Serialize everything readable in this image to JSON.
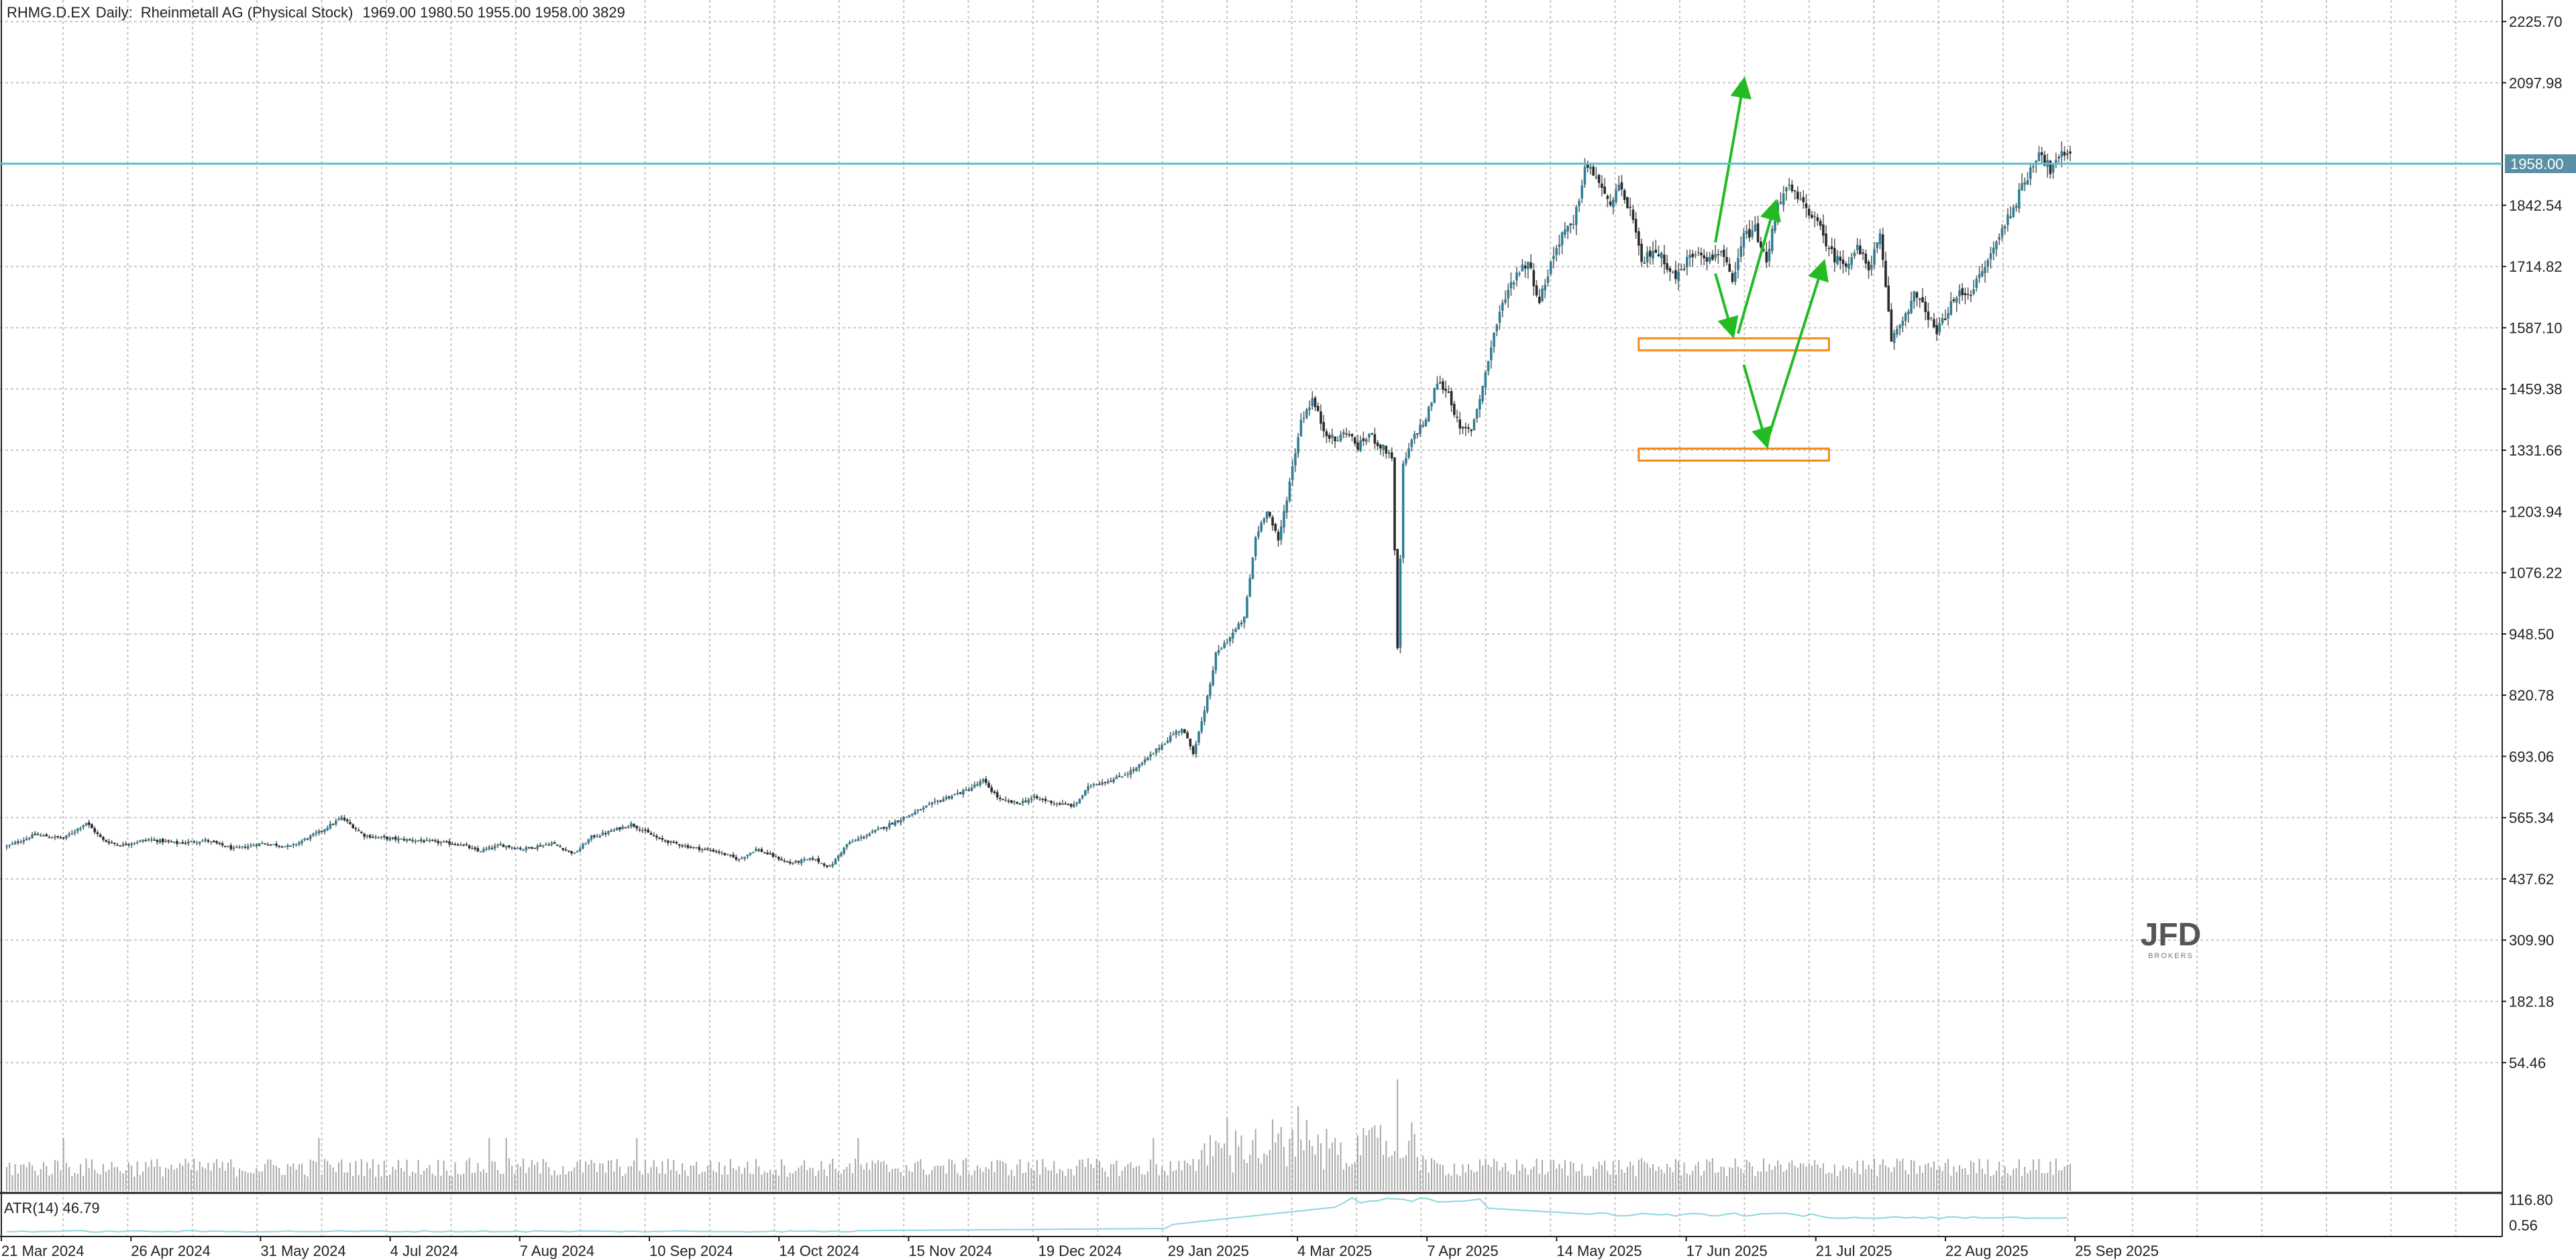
{
  "header": {
    "symbol": "RHMG.D.EX",
    "timeframe": "Daily:",
    "name": "Rheinmetall AG (Physical Stock)",
    "ohlcv": "1969.00 1980.50 1955.00 1958.00 3829"
  },
  "current_price_label": "1958.00",
  "atr_label": "ATR(14) 46.79",
  "watermark": {
    "main": "JFD",
    "sub": "BROKERS"
  },
  "colors": {
    "bull": "#2f7f97",
    "bear": "#2a2a2a",
    "grid": "#c8c8c8",
    "price_line": "#5bbccc",
    "arrows": "#22bb22",
    "zones": "#f08a17",
    "volume": "#a8a8a8",
    "atr": "#8fd6df"
  },
  "chart_data": {
    "type": "candlestick",
    "title": "RHMG.D.EX, Daily:  Rheinmetall AG (Physical Stock)",
    "y_ticks": [
      "2225.70",
      "2097.98",
      "1842.54",
      "1714.82",
      "1587.10",
      "1459.38",
      "1331.66",
      "1203.94",
      "1076.22",
      "948.50",
      "820.78",
      "693.06",
      "565.34",
      "437.62",
      "309.90",
      "182.18",
      "54.46"
    ],
    "ylim": [
      -13,
      2265
    ],
    "x_tick_labels": [
      "21 Mar 2024",
      "26 Apr 2024",
      "31 May 2024",
      "4 Jul 2024",
      "7 Aug 2024",
      "10 Sep 2024",
      "14 Oct 2024",
      "15 Nov 2024",
      "19 Dec 2024",
      "29 Jan 2025",
      "4 Mar 2025",
      "7 Apr 2025",
      "14 May 2025",
      "17 Jun 2025",
      "21 Jul 2025",
      "22 Aug 2025",
      "25 Sep 2025"
    ],
    "last_price": 1958.0,
    "close_path": [
      [
        0,
        505
      ],
      [
        10,
        530
      ],
      [
        20,
        522
      ],
      [
        28,
        555
      ],
      [
        34,
        518
      ],
      [
        40,
        508
      ],
      [
        50,
        520
      ],
      [
        60,
        512
      ],
      [
        70,
        518
      ],
      [
        80,
        500
      ],
      [
        90,
        512
      ],
      [
        100,
        505
      ],
      [
        110,
        535
      ],
      [
        118,
        565
      ],
      [
        126,
        528
      ],
      [
        134,
        522
      ],
      [
        144,
        518
      ],
      [
        154,
        513
      ],
      [
        160,
        510
      ],
      [
        166,
        495
      ],
      [
        174,
        508
      ],
      [
        182,
        500
      ],
      [
        192,
        512
      ],
      [
        200,
        490
      ],
      [
        206,
        525
      ],
      [
        212,
        535
      ],
      [
        220,
        552
      ],
      [
        230,
        520
      ],
      [
        240,
        505
      ],
      [
        250,
        495
      ],
      [
        258,
        478
      ],
      [
        264,
        500
      ],
      [
        270,
        485
      ],
      [
        276,
        470
      ],
      [
        284,
        480
      ],
      [
        290,
        462
      ],
      [
        296,
        510
      ],
      [
        304,
        532
      ],
      [
        316,
        565
      ],
      [
        330,
        605
      ],
      [
        338,
        622
      ],
      [
        344,
        642
      ],
      [
        350,
        602
      ],
      [
        356,
        595
      ],
      [
        362,
        607
      ],
      [
        370,
        595
      ],
      [
        376,
        590
      ],
      [
        382,
        635
      ],
      [
        390,
        645
      ],
      [
        398,
        668
      ],
      [
        404,
        700
      ],
      [
        410,
        735
      ],
      [
        414,
        752
      ],
      [
        418,
        702
      ],
      [
        422,
        785
      ],
      [
        426,
        905
      ],
      [
        430,
        935
      ],
      [
        436,
        980
      ],
      [
        440,
        1150
      ],
      [
        444,
        1210
      ],
      [
        448,
        1140
      ],
      [
        452,
        1265
      ],
      [
        456,
        1395
      ],
      [
        460,
        1438
      ],
      [
        464,
        1375
      ],
      [
        468,
        1350
      ],
      [
        472,
        1372
      ],
      [
        476,
        1338
      ],
      [
        480,
        1365
      ],
      [
        484,
        1340
      ],
      [
        488,
        1320
      ],
      [
        490,
        915
      ],
      [
        492,
        1298
      ],
      [
        496,
        1365
      ],
      [
        500,
        1395
      ],
      [
        504,
        1475
      ],
      [
        508,
        1452
      ],
      [
        512,
        1372
      ],
      [
        516,
        1375
      ],
      [
        520,
        1465
      ],
      [
        524,
        1575
      ],
      [
        528,
        1655
      ],
      [
        532,
        1702
      ],
      [
        536,
        1725
      ],
      [
        540,
        1642
      ],
      [
        544,
        1722
      ],
      [
        548,
        1785
      ],
      [
        552,
        1798
      ],
      [
        556,
        1922
      ],
      [
        560,
        1905
      ],
      [
        564,
        1845
      ],
      [
        568,
        1875
      ],
      [
        572,
        1835
      ],
      [
        576,
        1720
      ],
      [
        580,
        1752
      ],
      [
        584,
        1728
      ],
      [
        588,
        1690
      ],
      [
        592,
        1728
      ],
      [
        596,
        1752
      ],
      [
        600,
        1728
      ],
      [
        604,
        1752
      ],
      [
        608,
        1675
      ],
      [
        612,
        1778
      ],
      [
        616,
        1792
      ],
      [
        620,
        1722
      ],
      [
        624,
        1850
      ],
      [
        628,
        1878
      ],
      [
        632,
        1848
      ],
      [
        636,
        1825
      ],
      [
        640,
        1778
      ],
      [
        644,
        1732
      ],
      [
        648,
        1722
      ],
      [
        652,
        1752
      ],
      [
        656,
        1712
      ],
      [
        660,
        1775
      ],
      [
        664,
        1562
      ],
      [
        668,
        1605
      ],
      [
        672,
        1655
      ],
      [
        676,
        1625
      ],
      [
        680,
        1575
      ],
      [
        684,
        1625
      ],
      [
        688,
        1658
      ],
      [
        692,
        1662
      ],
      [
        696,
        1702
      ],
      [
        700,
        1752
      ],
      [
        704,
        1805
      ],
      [
        708,
        1852
      ],
      [
        712,
        1905
      ],
      [
        716,
        1958
      ],
      [
        720,
        1915
      ],
      [
        724,
        1945
      ],
      [
        727,
        1958
      ]
    ],
    "volume_ylim": [
      0,
      1.0
    ],
    "volume_pattern": "relative heights shown as grey histogram; spikes near Mar 2025 and 7 Apr 2025",
    "atr_ylim": [
      0.56,
      116.8
    ],
    "atr_ticks": [
      "116.80",
      "0.56"
    ],
    "atr_last": 46.79,
    "annotations": {
      "zones": [
        {
          "price_low": 1540,
          "price_high": 1565,
          "from_bar": 575,
          "to_bar": 642
        },
        {
          "price_low": 1310,
          "price_high": 1335,
          "from_bar": 575,
          "to_bar": 642
        }
      ],
      "arrows": [
        {
          "from": [
            602,
            1765
          ],
          "to": [
            612,
            2100
          ]
        },
        {
          "from": [
            602,
            1700
          ],
          "to": [
            608,
            1575
          ]
        },
        {
          "from": [
            610,
            1575
          ],
          "to": [
            623,
            1845
          ]
        },
        {
          "from": [
            612,
            1510
          ],
          "to": [
            620,
            1345
          ]
        },
        {
          "from": [
            620,
            1345
          ],
          "to": [
            640,
            1720
          ]
        }
      ]
    }
  }
}
